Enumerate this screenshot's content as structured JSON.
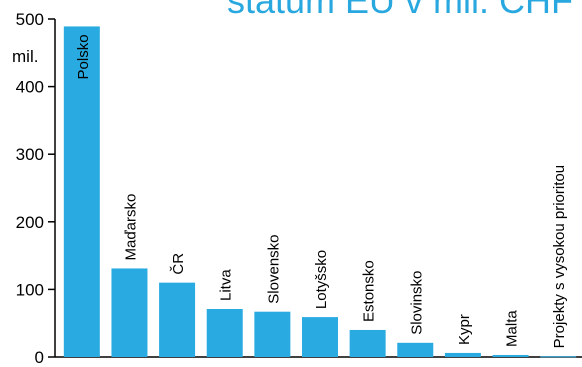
{
  "chart_data": {
    "type": "bar",
    "title": "státům EU v mil. CHF",
    "ylabel": "mil.",
    "ylim": [
      0,
      500
    ],
    "yticks": [
      0,
      100,
      200,
      300,
      400,
      500
    ],
    "grid": false,
    "bar_color": "#29abe2",
    "categories": [
      "Polsko",
      "Maďarsko",
      "ČR",
      "Litva",
      "Slovensko",
      "Lotyšsko",
      "Estonsko",
      "Slovinsko",
      "Kypr",
      "Malta",
      "Projekty s vysokou prioritou"
    ],
    "values": [
      489,
      131,
      110,
      71,
      67,
      59,
      40,
      21,
      6,
      3,
      1
    ]
  }
}
